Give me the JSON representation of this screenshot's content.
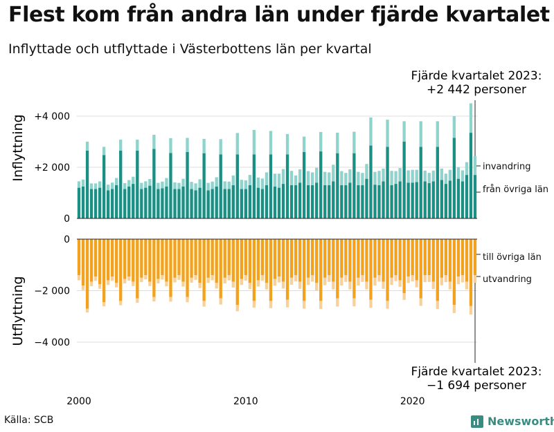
{
  "title": "Flest kom från andra län under fjärde kvartalet",
  "subtitle": "Inflyttade och utflyttade i Västerbottens län per kvartal",
  "source": "Källa: SCB",
  "brand": "Newsworthy",
  "colors": {
    "fran_ovriga_lan": "#1b8f84",
    "invandring": "#8fd3cc",
    "till_ovriga_lan": "#f3a21f",
    "utvandring": "#f8d19a",
    "gridline": "#dddddd",
    "axis": "#222222"
  },
  "chart_data": [
    {
      "type": "bar",
      "stacked": true,
      "panel": "top",
      "ylabel": "Inflyttning",
      "ylim": [
        0,
        4500
      ],
      "yticks": [
        0,
        2000,
        4000
      ],
      "ytick_labels": [
        "0",
        "+2 000",
        "+4 000"
      ],
      "x_start": "2000 Q1",
      "x_end": "2023 Q4",
      "xticks": [
        2000,
        2010,
        2020
      ],
      "grid": true,
      "series": [
        {
          "name": "från övriga län",
          "values": [
            1200,
            1250,
            2650,
            1150,
            1150,
            1200,
            2480,
            1100,
            1150,
            1300,
            2650,
            1150,
            1250,
            1350,
            2650,
            1150,
            1200,
            1280,
            2720,
            1150,
            1180,
            1250,
            2560,
            1150,
            1150,
            1250,
            2600,
            1150,
            1100,
            1200,
            2550,
            1100,
            1150,
            1250,
            2500,
            1150,
            1150,
            1300,
            2500,
            1150,
            1150,
            1300,
            2500,
            1200,
            1150,
            1300,
            2500,
            1250,
            1200,
            1350,
            2500,
            1300,
            1300,
            1400,
            2600,
            1300,
            1300,
            1400,
            2620,
            1300,
            1300,
            1450,
            2550,
            1300,
            1300,
            1400,
            2550,
            1300,
            1300,
            1550,
            2850,
            1320,
            1300,
            1450,
            2800,
            1300,
            1350,
            1450,
            3000,
            1400,
            1400,
            1420,
            2800,
            1450,
            1380,
            1450,
            2800,
            1500,
            1350,
            1480,
            3150,
            1550,
            1450,
            1700,
            3350,
            1700
          ]
        },
        {
          "name": "invandring",
          "values": [
            250,
            270,
            350,
            220,
            220,
            250,
            320,
            220,
            250,
            280,
            430,
            230,
            250,
            280,
            430,
            240,
            250,
            260,
            550,
            240,
            260,
            330,
            580,
            260,
            240,
            300,
            550,
            280,
            270,
            330,
            560,
            290,
            290,
            360,
            600,
            300,
            290,
            380,
            840,
            360,
            340,
            400,
            960,
            400,
            410,
            500,
            920,
            500,
            550,
            580,
            800,
            560,
            380,
            520,
            600,
            550,
            500,
            580,
            760,
            520,
            500,
            650,
            800,
            550,
            480,
            520,
            840,
            520,
            480,
            580,
            1100,
            500,
            560,
            500,
            1060,
            560,
            500,
            520,
            800,
            480,
            500,
            480,
            1000,
            420,
            400,
            420,
            1000,
            450,
            400,
            420,
            850,
            450,
            430,
            500,
            1150,
            742
          ]
        }
      ]
    },
    {
      "type": "bar",
      "stacked": true,
      "panel": "bottom",
      "ylabel": "Utflyttning",
      "ylim": [
        -4500,
        0
      ],
      "yticks": [
        0,
        -2000,
        -4000
      ],
      "ytick_labels": [
        "0",
        "−2 000",
        "−4 000"
      ],
      "x_start": "2000 Q1",
      "x_end": "2023 Q4",
      "xticks": [
        2000,
        2010,
        2020
      ],
      "grid": true,
      "series": [
        {
          "name": "till övriga län",
          "values": [
            -1400,
            -1800,
            -2700,
            -1650,
            -1450,
            -1750,
            -2450,
            -1600,
            -1450,
            -1700,
            -2400,
            -1550,
            -1450,
            -1650,
            -2300,
            -1500,
            -1400,
            -1650,
            -2250,
            -1550,
            -1400,
            -1650,
            -2250,
            -1500,
            -1400,
            -1650,
            -2250,
            -1500,
            -1400,
            -1700,
            -2400,
            -1500,
            -1400,
            -1700,
            -2300,
            -1500,
            -1400,
            -1650,
            -2550,
            -1550,
            -1400,
            -1700,
            -2400,
            -1600,
            -1400,
            -1700,
            -2400,
            -1550,
            -1450,
            -1650,
            -2350,
            -1500,
            -1400,
            -1650,
            -2400,
            -1500,
            -1400,
            -1700,
            -2400,
            -1500,
            -1400,
            -1650,
            -2300,
            -1500,
            -1400,
            -1650,
            -2300,
            -1500,
            -1400,
            -1650,
            -2350,
            -1500,
            -1400,
            -1650,
            -2400,
            -1500,
            -1400,
            -1600,
            -2100,
            -1450,
            -1400,
            -1600,
            -2300,
            -1400,
            -1400,
            -1650,
            -2400,
            -1500,
            -1400,
            -1650,
            -2550,
            -1450,
            -1400,
            -1650,
            -2600,
            -1400
          ]
        },
        {
          "name": "utvandring",
          "values": [
            -200,
            -180,
            -150,
            -180,
            -170,
            -180,
            -160,
            -180,
            -170,
            -170,
            -170,
            -170,
            -160,
            -170,
            -170,
            -170,
            -160,
            -170,
            -170,
            -170,
            -170,
            -180,
            -180,
            -180,
            -180,
            -190,
            -200,
            -190,
            -180,
            -200,
            -220,
            -200,
            -200,
            -220,
            -240,
            -220,
            -200,
            -230,
            -250,
            -230,
            -210,
            -240,
            -260,
            -240,
            -220,
            -250,
            -280,
            -260,
            -230,
            -270,
            -300,
            -270,
            -240,
            -280,
            -300,
            -280,
            -250,
            -290,
            -310,
            -290,
            -260,
            -300,
            -320,
            -300,
            -260,
            -300,
            -310,
            -300,
            -260,
            -300,
            -320,
            -300,
            -250,
            -280,
            -300,
            -280,
            -230,
            -250,
            -260,
            -250,
            -240,
            -270,
            -290,
            -270,
            -260,
            -290,
            -310,
            -290,
            -270,
            -300,
            -320,
            -300,
            -280,
            -300,
            -330,
            -294
          ]
        }
      ]
    }
  ],
  "annotations": {
    "top_line1": "Fjärde kvartalet 2023:",
    "top_line2": "+2 442 personer",
    "bottom_line1": "Fjärde kvartalet 2023:",
    "bottom_line2": "−1 694 personer"
  }
}
